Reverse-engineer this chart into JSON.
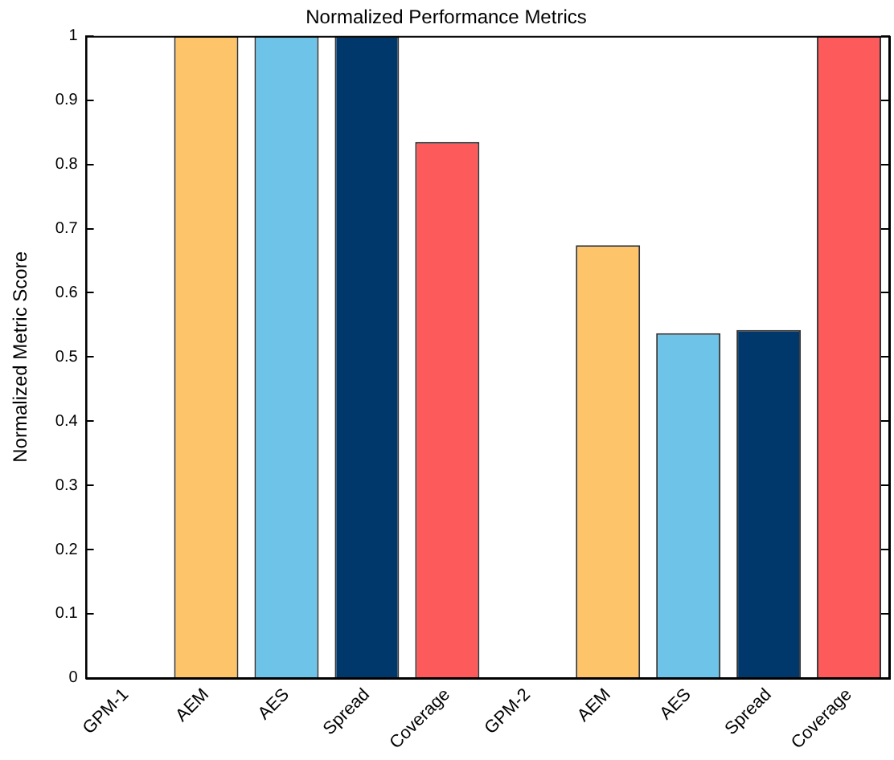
{
  "chart_data": {
    "type": "bar",
    "title": "Normalized Performance Metrics",
    "ylabel": "Normalized Metric Score",
    "categories": [
      "GPM-1",
      "AEM",
      "AES",
      "Spread",
      "Coverage",
      "GPM-2",
      "AEM",
      "AES",
      "Spread",
      "Coverage"
    ],
    "values": [
      null,
      1,
      1,
      1,
      0.835,
      null,
      0.674,
      0.537,
      0.542,
      1
    ],
    "colors": [
      "#fdc46a",
      "#fdc46a",
      "#6ec3e8",
      "#00386b",
      "#fd5b5b",
      "#fdc46a",
      "#fdc46a",
      "#6ec3e8",
      "#00386b",
      "#fd5b5b"
    ],
    "ylim": [
      0,
      1
    ],
    "yticks": [
      0,
      0.1,
      0.2,
      0.3,
      0.4,
      0.5,
      0.6,
      0.7,
      0.8,
      0.9,
      1
    ],
    "grid": false,
    "legend": false
  }
}
